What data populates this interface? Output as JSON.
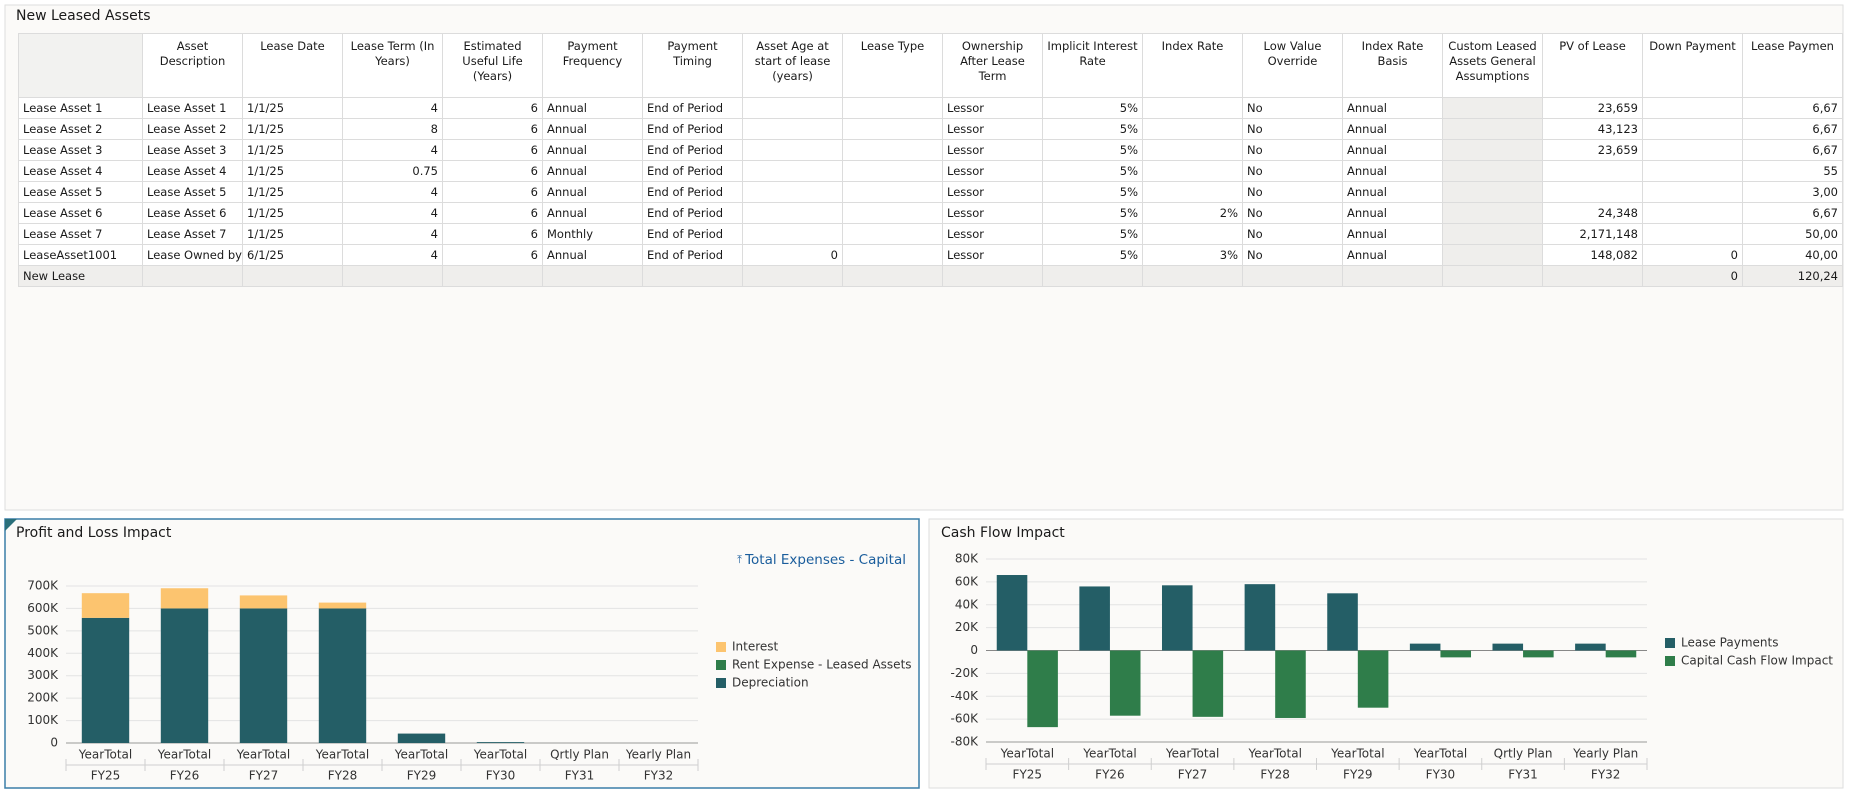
{
  "table_panel": {
    "title": "New Leased Assets",
    "columns": [
      "Asset Description",
      "Lease Date",
      "Lease Term (In Years)",
      "Estimated Useful Life (Years)",
      "Payment Frequency",
      "Payment Timing",
      "Asset Age at start of lease (years)",
      "Lease Type",
      "Ownership After Lease Term",
      "Implicit Interest Rate",
      "Index Rate",
      "Low Value Override",
      "Index Rate Basis",
      "Custom Leased Assets General Assumptions",
      "PV of Lease",
      "Down Payment",
      "Lease Paymen"
    ],
    "rows": [
      {
        "label": "Lease Asset 1",
        "cells": [
          "Lease Asset 1",
          "1/1/25",
          "4",
          "6",
          "Annual",
          "End of Period",
          null,
          null,
          "Lessor",
          "5%",
          null,
          "No",
          "Annual",
          null,
          "23,659",
          null,
          "6,67"
        ]
      },
      {
        "label": "Lease Asset 2",
        "cells": [
          "Lease Asset 2",
          "1/1/25",
          "8",
          "6",
          "Annual",
          "End of Period",
          null,
          null,
          "Lessor",
          "5%",
          null,
          "No",
          "Annual",
          null,
          "43,123",
          null,
          "6,67"
        ]
      },
      {
        "label": "Lease Asset 3",
        "cells": [
          "Lease Asset 3",
          "1/1/25",
          "4",
          "6",
          "Annual",
          "End of Period",
          null,
          null,
          "Lessor",
          "5%",
          null,
          "No",
          "Annual",
          null,
          "23,659",
          null,
          "6,67"
        ]
      },
      {
        "label": "Lease Asset 4",
        "cells": [
          "Lease Asset 4",
          "1/1/25",
          "0.75",
          "6",
          "Annual",
          "End of Period",
          null,
          null,
          "Lessor",
          "5%",
          null,
          "No",
          "Annual",
          null,
          null,
          null,
          "55"
        ]
      },
      {
        "label": "Lease Asset 5",
        "cells": [
          "Lease Asset 5",
          "1/1/25",
          "4",
          "6",
          "Annual",
          "End of Period",
          null,
          null,
          "Lessor",
          "5%",
          null,
          "No",
          "Annual",
          null,
          null,
          null,
          "3,00"
        ]
      },
      {
        "label": "Lease Asset 6",
        "cells": [
          "Lease Asset 6",
          "1/1/25",
          "4",
          "6",
          "Annual",
          "End of Period",
          null,
          null,
          "Lessor",
          "5%",
          "2%",
          "No",
          "Annual",
          null,
          "24,348",
          null,
          "6,67"
        ]
      },
      {
        "label": "Lease Asset 7",
        "cells": [
          "Lease Asset 7",
          "1/1/25",
          "4",
          "6",
          "Monthly",
          "End of Period",
          null,
          null,
          "Lessor",
          "5%",
          null,
          "No",
          "Annual",
          null,
          "2,171,148",
          null,
          "50,00"
        ]
      },
      {
        "label": "LeaseAsset1001",
        "cells": [
          "Lease Owned by",
          "6/1/25",
          "4",
          "6",
          "Annual",
          "End of Period",
          "0",
          null,
          "Lessor",
          "5%",
          "3%",
          "No",
          "Annual",
          null,
          "148,082",
          "0",
          "40,00"
        ]
      },
      {
        "label": "New Lease",
        "cells": [
          null,
          null,
          null,
          null,
          null,
          null,
          null,
          null,
          null,
          null,
          null,
          null,
          null,
          null,
          null,
          "0",
          "120,24"
        ]
      }
    ]
  },
  "chart_data": [
    {
      "type": "bar",
      "stacked": true,
      "title": "Profit and Loss Impact",
      "link_text": "Total Expenses - Capital",
      "category_scenarios": [
        "YearTotal",
        "YearTotal",
        "YearTotal",
        "YearTotal",
        "YearTotal",
        "YearTotal",
        "Qrtly Plan",
        "Yearly Plan"
      ],
      "categories": [
        "FY25",
        "FY26",
        "FY27",
        "FY28",
        "FY29",
        "FY30",
        "FY31",
        "FY32"
      ],
      "series": [
        {
          "name": "Depreciation",
          "color": "#245e66",
          "values": [
            558000,
            600000,
            600000,
            600000,
            42000,
            4000,
            0,
            0
          ]
        },
        {
          "name": "Rent Expense - Leased Assets",
          "color": "#2f7d4a",
          "values": [
            0,
            0,
            0,
            0,
            0,
            0,
            0,
            0
          ]
        },
        {
          "name": "Interest",
          "color": "#fcc46f",
          "values": [
            110000,
            90000,
            58000,
            26000,
            0,
            0,
            0,
            0
          ]
        }
      ],
      "ylim": [
        0,
        700000
      ],
      "yticks": [
        0,
        {
          "value": 100000,
          "label": "100K"
        },
        {
          "value": 200000,
          "label": "200K"
        },
        {
          "value": 300000,
          "label": "300K"
        },
        {
          "value": 400000,
          "label": "400K"
        },
        {
          "value": 500000,
          "label": "500K"
        },
        {
          "value": 600000,
          "label": "600K"
        },
        {
          "value": 700000,
          "label": "700K"
        }
      ],
      "grid": true,
      "legend": "right"
    },
    {
      "type": "bar",
      "stacked": false,
      "title": "Cash Flow Impact",
      "category_scenarios": [
        "YearTotal",
        "YearTotal",
        "YearTotal",
        "YearTotal",
        "YearTotal",
        "YearTotal",
        "Qrtly Plan",
        "Yearly Plan"
      ],
      "categories": [
        "FY25",
        "FY26",
        "FY27",
        "FY28",
        "FY29",
        "FY30",
        "FY31",
        "FY32"
      ],
      "series": [
        {
          "name": "Lease Payments",
          "color": "#245e66",
          "values": [
            66000,
            56000,
            57000,
            58000,
            50000,
            6000,
            6000,
            6000
          ]
        },
        {
          "name": "Capital Cash Flow Impact",
          "color": "#2f7d4a",
          "values": [
            -67000,
            -57000,
            -58000,
            -59000,
            -50000,
            -6000,
            -6000,
            -6000
          ]
        }
      ],
      "ylim": [
        -80000,
        80000
      ],
      "yticks": [
        {
          "value": -80000,
          "label": "-80K"
        },
        {
          "value": -60000,
          "label": "-60K"
        },
        {
          "value": -40000,
          "label": "-40K"
        },
        {
          "value": -20000,
          "label": "-20K"
        },
        0,
        {
          "value": 20000,
          "label": "20K"
        },
        {
          "value": 40000,
          "label": "40K"
        },
        {
          "value": 60000,
          "label": "60K"
        },
        {
          "value": 80000,
          "label": "80K"
        }
      ],
      "grid": true,
      "legend": "right"
    }
  ]
}
